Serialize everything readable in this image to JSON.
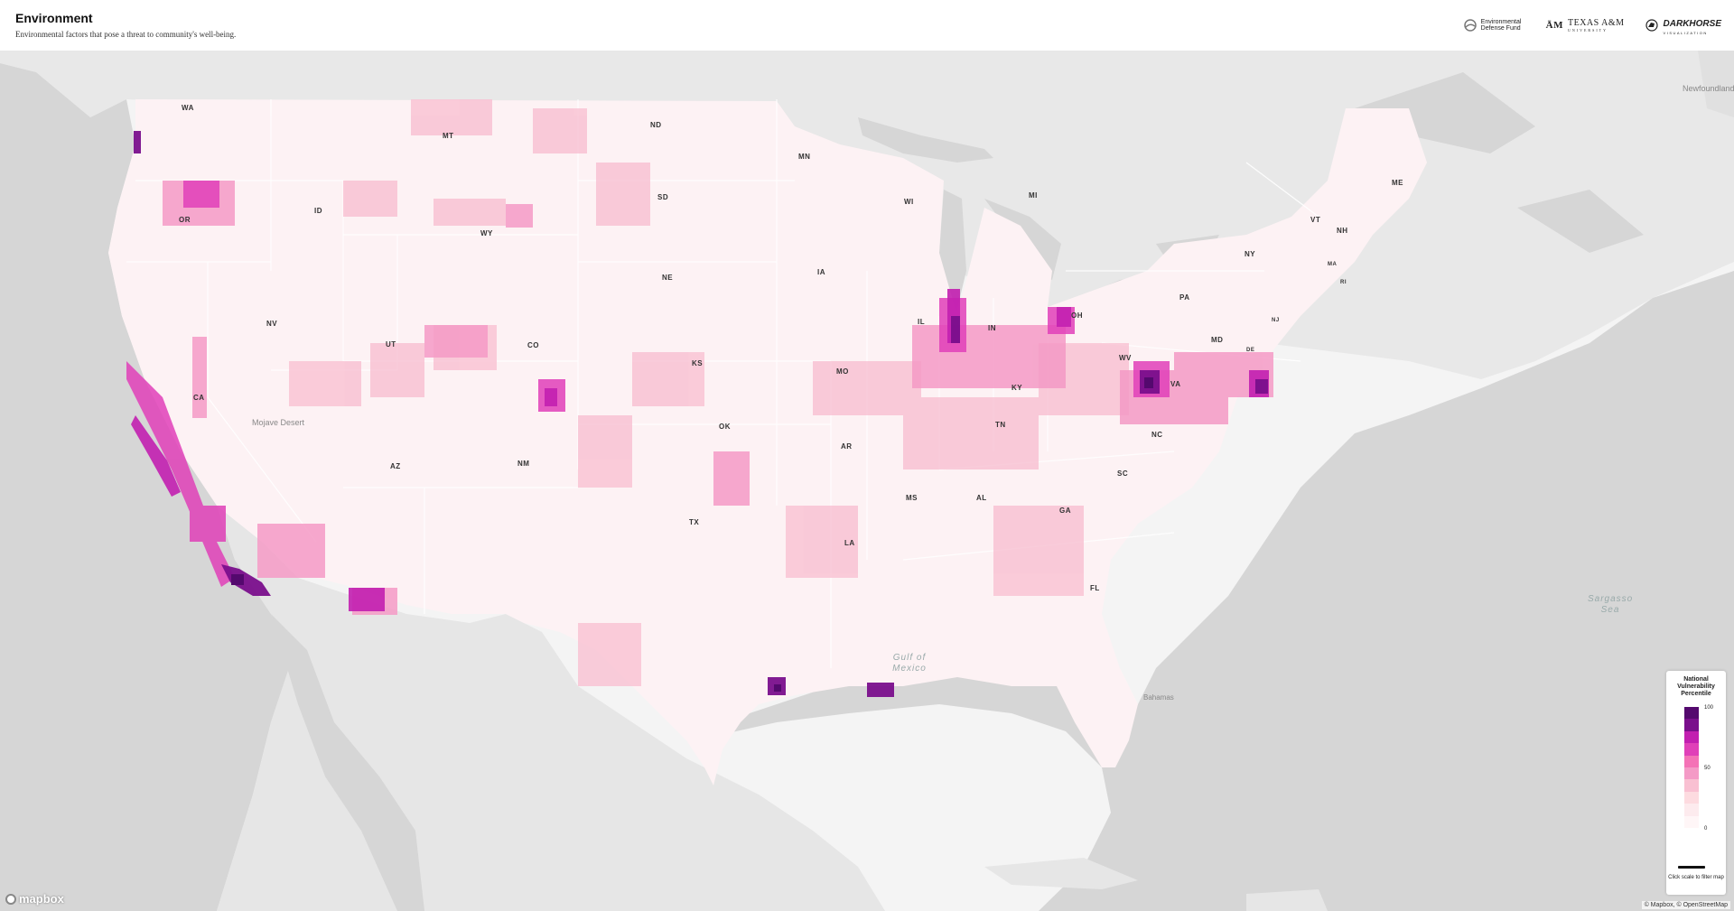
{
  "header": {
    "title": "Environment",
    "subtitle": "Environmental factors that pose a threat to community's well-being.",
    "logos": {
      "edf": "Environmental Defense Fund",
      "tamu": "TEXAS A&M",
      "tamu_sub": "UNIVERSITY",
      "darkhorse": "DARKHORSE",
      "darkhorse_sub": "VISUALIZATION"
    }
  },
  "map": {
    "state_labels": [
      "WA",
      "OR",
      "CA",
      "NV",
      "ID",
      "MT",
      "WY",
      "UT",
      "AZ",
      "CO",
      "NM",
      "ND",
      "SD",
      "NE",
      "KS",
      "OK",
      "TX",
      "MN",
      "IA",
      "MO",
      "AR",
      "LA",
      "WI",
      "IL",
      "MI",
      "IN",
      "OH",
      "KY",
      "TN",
      "MS",
      "AL",
      "GA",
      "FL",
      "SC",
      "NC",
      "VA",
      "WV",
      "PA",
      "NY",
      "MD",
      "DE",
      "NJ",
      "VT",
      "NH",
      "MA",
      "RI",
      "ME"
    ],
    "water_labels": [
      "Gulf of Mexico",
      "Sargasso Sea"
    ],
    "place_labels": [
      "Mojave Desert",
      "Bahamas",
      "Newfoundland"
    ]
  },
  "legend": {
    "title": "National Vulnerability Percentile",
    "ticks": [
      "100",
      "50",
      "0"
    ],
    "colors": [
      "#54096e",
      "#7a0f8c",
      "#c21fb0",
      "#e040b8",
      "#f472b6",
      "#f49ac6",
      "#f9c0d2",
      "#fddbe0",
      "#fdebee",
      "#fff6f7"
    ],
    "note": "Click scale to filter map"
  },
  "attribution": {
    "mapbox": "mapbox",
    "text": "© Mapbox, © OpenStreetMap"
  }
}
